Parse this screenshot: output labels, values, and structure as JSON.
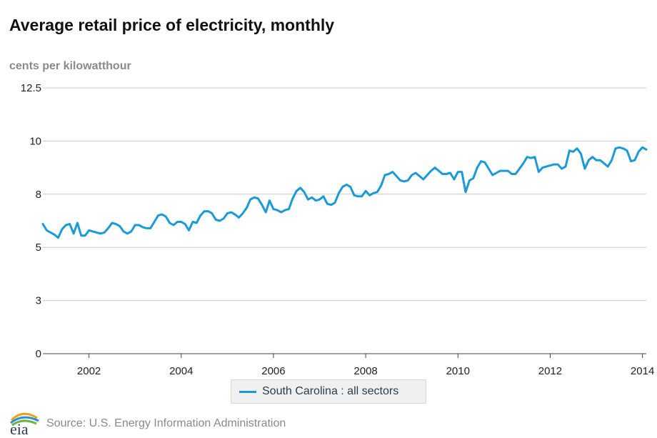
{
  "chart_data": {
    "type": "line",
    "title": "Average retail price of electricity, monthly",
    "ylabel": "cents per kilowatthour",
    "xlabel": "",
    "ylim": [
      0,
      12.5
    ],
    "yticks": [
      {
        "value": 0,
        "label": "0"
      },
      {
        "value": 2.5,
        "label": "3"
      },
      {
        "value": 5,
        "label": "5"
      },
      {
        "value": 7.5,
        "label": "8"
      },
      {
        "value": 10,
        "label": "10"
      },
      {
        "value": 12.5,
        "label": "12.5"
      }
    ],
    "xlim": [
      "2001-01",
      "2014-02"
    ],
    "xticks": [
      "2002",
      "2004",
      "2006",
      "2008",
      "2010",
      "2012",
      "2014"
    ],
    "grid": true,
    "legend_position": "bottom",
    "colors": {
      "series": "#1a9ad6",
      "grid": "#c8c8c8",
      "axis": "#444444"
    },
    "series": [
      {
        "name": "South Carolina : all sectors",
        "start": "2001-01",
        "values": [
          6.1,
          5.8,
          5.7,
          5.6,
          5.45,
          5.85,
          6.05,
          6.1,
          5.65,
          6.15,
          5.55,
          5.55,
          5.8,
          5.75,
          5.7,
          5.65,
          5.7,
          5.9,
          6.15,
          6.1,
          6.0,
          5.75,
          5.65,
          5.75,
          6.05,
          6.05,
          5.95,
          5.9,
          5.9,
          6.2,
          6.5,
          6.55,
          6.45,
          6.15,
          6.05,
          6.2,
          6.2,
          6.1,
          5.8,
          6.2,
          6.15,
          6.5,
          6.7,
          6.7,
          6.6,
          6.3,
          6.25,
          6.35,
          6.6,
          6.65,
          6.55,
          6.4,
          6.6,
          6.85,
          7.25,
          7.35,
          7.3,
          7.0,
          6.65,
          7.2,
          6.8,
          6.75,
          6.65,
          6.75,
          6.8,
          7.3,
          7.65,
          7.8,
          7.6,
          7.25,
          7.35,
          7.2,
          7.25,
          7.4,
          7.05,
          7.0,
          7.1,
          7.55,
          7.85,
          7.95,
          7.85,
          7.45,
          7.4,
          7.4,
          7.65,
          7.45,
          7.55,
          7.6,
          7.9,
          8.4,
          8.45,
          8.55,
          8.35,
          8.15,
          8.1,
          8.15,
          8.4,
          8.5,
          8.35,
          8.2,
          8.4,
          8.6,
          8.75,
          8.6,
          8.45,
          8.45,
          8.5,
          8.2,
          8.55,
          8.55,
          7.6,
          8.15,
          8.25,
          8.75,
          9.05,
          9.0,
          8.7,
          8.4,
          8.5,
          8.6,
          8.6,
          8.6,
          8.45,
          8.45,
          8.7,
          8.95,
          9.25,
          9.2,
          9.25,
          8.55,
          8.75,
          8.8,
          8.85,
          8.9,
          8.9,
          8.7,
          8.8,
          9.55,
          9.5,
          9.65,
          9.4,
          8.7,
          9.1,
          9.25,
          9.1,
          9.1,
          8.95,
          8.8,
          9.1,
          9.65,
          9.7,
          9.65,
          9.55,
          9.05,
          9.1,
          9.5,
          9.7,
          9.6
        ]
      }
    ]
  },
  "source": "Source: U.S. Energy Information Administration",
  "logo_text": "eia"
}
